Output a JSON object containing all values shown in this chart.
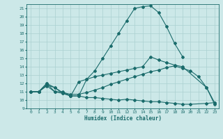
{
  "xlabel": "Humidex (Indice chaleur)",
  "bg_color": "#cce8e8",
  "line_color": "#1a6b6b",
  "grid_color": "#aad0d0",
  "xlim": [
    -0.5,
    23.5
  ],
  "ylim": [
    9,
    21.5
  ],
  "xticks": [
    0,
    1,
    2,
    3,
    4,
    5,
    6,
    7,
    8,
    9,
    10,
    11,
    12,
    13,
    14,
    15,
    16,
    17,
    18,
    19,
    20,
    21,
    22,
    23
  ],
  "yticks": [
    9,
    10,
    11,
    12,
    13,
    14,
    15,
    16,
    17,
    18,
    19,
    20,
    21
  ],
  "curves": [
    {
      "x": [
        0,
        1,
        2,
        3,
        4,
        5,
        6,
        7,
        8,
        9,
        10,
        11,
        12,
        13,
        14,
        15,
        16,
        17,
        18,
        19
      ],
      "y": [
        11,
        11,
        12,
        11,
        11,
        10.5,
        10.5,
        12.5,
        13.5,
        15.0,
        16.5,
        18.0,
        19.5,
        21.0,
        21.2,
        21.3,
        20.5,
        18.8,
        16.8,
        15.2
      ]
    },
    {
      "x": [
        0,
        1,
        2,
        3,
        4,
        5,
        6,
        7,
        8,
        9,
        10,
        11,
        12,
        13,
        14,
        15,
        16,
        17,
        18,
        19,
        20,
        22,
        23
      ],
      "y": [
        11,
        11,
        11.7,
        11,
        10.8,
        10.5,
        10.5,
        10.3,
        10.3,
        10.2,
        10.1,
        10.0,
        10.1,
        10.0,
        9.9,
        9.8,
        9.8,
        9.7,
        9.6,
        9.5,
        9.5,
        9.6,
        9.7
      ]
    },
    {
      "x": [
        0,
        1,
        2,
        3,
        4,
        5,
        6,
        7,
        8,
        9,
        10,
        11,
        12,
        13,
        14,
        15,
        16,
        17,
        18,
        19,
        20,
        21,
        22,
        23
      ],
      "y": [
        11,
        11,
        11.8,
        11.5,
        10.9,
        10.7,
        10.7,
        10.9,
        11.2,
        11.5,
        11.9,
        12.2,
        12.5,
        12.8,
        13.1,
        13.4,
        13.6,
        13.9,
        14.1,
        13.8,
        13.5,
        12.8,
        11.5,
        9.5
      ]
    },
    {
      "x": [
        0,
        1,
        2,
        3,
        4,
        5,
        6,
        7,
        8,
        9,
        10,
        11,
        12,
        13,
        14,
        15,
        16,
        17,
        18,
        19,
        22,
        23
      ],
      "y": [
        11,
        11,
        12,
        11.5,
        10.8,
        10.5,
        12.2,
        12.5,
        12.8,
        13.0,
        13.2,
        13.4,
        13.6,
        13.8,
        14.0,
        15.2,
        14.8,
        14.5,
        14.2,
        14.0,
        11.5,
        9.7
      ]
    }
  ]
}
